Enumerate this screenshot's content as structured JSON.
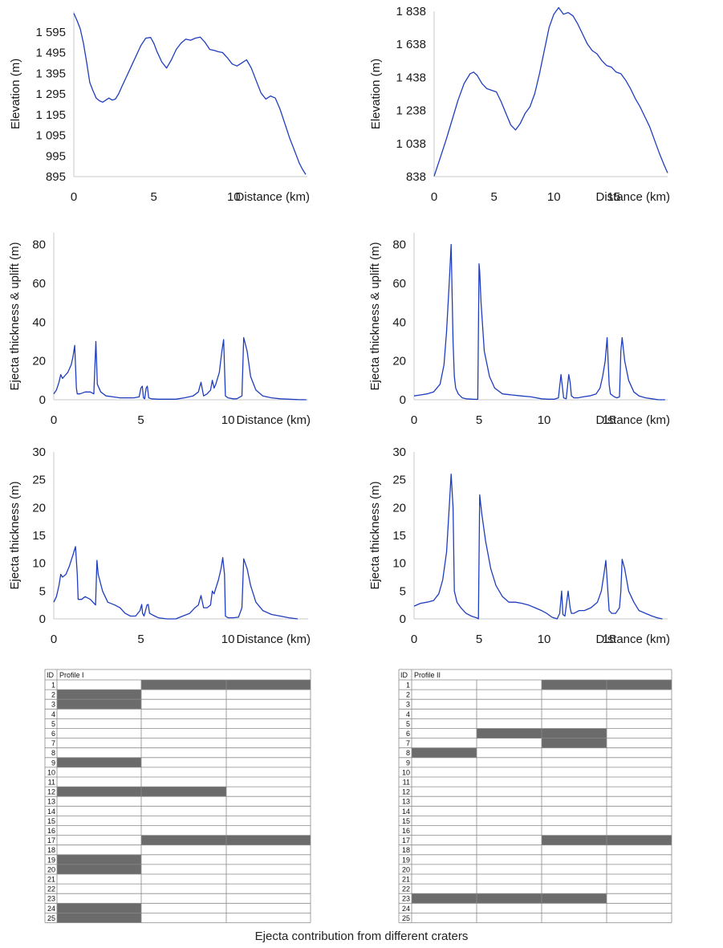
{
  "caption": "Ejecta contribution from different craters",
  "colors": {
    "line": "#1f3dbf",
    "axis": "#c9c9c9",
    "cell_fill": "#6b6b6b",
    "grid": "#8a8a8a"
  },
  "chart_data": [
    {
      "type": "line",
      "xlabel": "Distance (km)",
      "ylabel": "Elevation (m)",
      "ylim": [
        895,
        1695
      ],
      "yticks": [
        895,
        995,
        1095,
        1195,
        1295,
        1395,
        1495,
        1595
      ],
      "ytick_labels": [
        "895",
        "995",
        "1 095",
        "1 195",
        "1 295",
        "1 395",
        "1 495",
        "1 595"
      ],
      "xlim": [
        0,
        14.6
      ],
      "xticks": [
        0,
        5,
        10
      ],
      "xtick_labels": [
        "0",
        "5",
        "10"
      ],
      "series": [
        {
          "x": [
            0,
            0.2,
            0.4,
            0.6,
            0.8,
            1.0,
            1.2,
            1.4,
            1.6,
            1.8,
            2.0,
            2.2,
            2.4,
            2.6,
            2.8,
            3.0,
            3.3,
            3.6,
            3.9,
            4.2,
            4.5,
            4.8,
            5.0,
            5.2,
            5.5,
            5.8,
            6.1,
            6.4,
            6.7,
            7.0,
            7.3,
            7.6,
            7.9,
            8.2,
            8.5,
            8.8,
            9.0,
            9.3,
            9.6,
            9.9,
            10.2,
            10.5,
            10.8,
            11.1,
            11.4,
            11.7,
            12.0,
            12.3,
            12.6,
            12.9,
            13.2,
            13.5,
            13.8,
            14.1,
            14.3,
            14.5
          ],
          "values": [
            1685,
            1650,
            1610,
            1540,
            1450,
            1350,
            1310,
            1275,
            1262,
            1255,
            1265,
            1275,
            1265,
            1270,
            1295,
            1330,
            1380,
            1430,
            1480,
            1530,
            1565,
            1568,
            1540,
            1500,
            1450,
            1420,
            1460,
            1510,
            1540,
            1560,
            1555,
            1565,
            1570,
            1545,
            1510,
            1505,
            1500,
            1495,
            1470,
            1440,
            1430,
            1445,
            1460,
            1420,
            1360,
            1300,
            1270,
            1285,
            1275,
            1220,
            1150,
            1080,
            1020,
            960,
            930,
            905
          ]
        }
      ]
    },
    {
      "type": "line",
      "xlabel": "Distance (km)",
      "ylabel": "Elevation (m)",
      "ylim": [
        838,
        1838
      ],
      "yticks": [
        838,
        1038,
        1238,
        1438,
        1638,
        1838
      ],
      "ytick_labels": [
        "838",
        "1 038",
        "1 238",
        "1 438",
        "1 638",
        "1 838"
      ],
      "xlim": [
        0,
        19.5
      ],
      "xticks": [
        0,
        5,
        10,
        15
      ],
      "xtick_labels": [
        "0",
        "5",
        "10",
        "15"
      ],
      "series": [
        {
          "x": [
            0,
            0.5,
            1.0,
            1.5,
            2.0,
            2.5,
            3.0,
            3.3,
            3.6,
            4.0,
            4.4,
            4.8,
            5.2,
            5.6,
            6.0,
            6.4,
            6.8,
            7.2,
            7.6,
            8.0,
            8.4,
            8.8,
            9.2,
            9.6,
            10.0,
            10.4,
            10.8,
            11.2,
            11.6,
            12.0,
            12.4,
            12.8,
            13.2,
            13.6,
            14.0,
            14.4,
            14.8,
            15.2,
            15.6,
            16.0,
            16.4,
            16.8,
            17.2,
            17.6,
            18.0,
            18.4,
            18.8,
            19.2,
            19.5
          ],
          "values": [
            840,
            950,
            1060,
            1180,
            1300,
            1400,
            1460,
            1470,
            1450,
            1400,
            1370,
            1360,
            1350,
            1290,
            1220,
            1150,
            1120,
            1160,
            1220,
            1260,
            1340,
            1460,
            1600,
            1740,
            1820,
            1860,
            1820,
            1830,
            1810,
            1760,
            1700,
            1640,
            1600,
            1580,
            1540,
            1510,
            1500,
            1470,
            1460,
            1420,
            1370,
            1310,
            1260,
            1200,
            1140,
            1060,
            980,
            910,
            860
          ]
        }
      ]
    },
    {
      "type": "line",
      "xlabel": "Distance (km)",
      "ylabel": "Ejecta thickness & uplift (m)",
      "ylim": [
        0,
        86
      ],
      "yticks": [
        0,
        20,
        40,
        60,
        80
      ],
      "ytick_labels": [
        "0",
        "20",
        "40",
        "60",
        "80"
      ],
      "xlim": [
        0,
        14.6
      ],
      "xticks": [
        0,
        5,
        10
      ],
      "xtick_labels": [
        "0",
        "5",
        "10"
      ],
      "series": [
        {
          "x": [
            0,
            0.15,
            0.3,
            0.4,
            0.5,
            0.6,
            0.8,
            1.0,
            1.1,
            1.2,
            1.3,
            1.35,
            1.5,
            1.8,
            2.1,
            2.3,
            2.42,
            2.5,
            2.7,
            3.0,
            3.4,
            3.8,
            4.2,
            4.6,
            4.9,
            5.0,
            5.08,
            5.15,
            5.22,
            5.3,
            5.37,
            5.45,
            5.6,
            6.0,
            6.5,
            7.0,
            7.5,
            8.0,
            8.3,
            8.45,
            8.6,
            8.8,
            9.0,
            9.1,
            9.2,
            9.3,
            9.5,
            9.65,
            9.75,
            9.85,
            10.0,
            10.3,
            10.5,
            10.8,
            10.9,
            11.1,
            11.3,
            11.6,
            12.0,
            12.5,
            13.0,
            13.5,
            14.0,
            14.5
          ],
          "values": [
            3,
            5,
            9,
            13,
            11,
            12,
            14,
            18,
            22,
            28,
            6,
            3,
            3,
            4,
            4,
            3,
            30,
            8,
            4,
            2,
            1.5,
            1,
            1,
            1,
            1.5,
            6,
            7,
            1,
            0.5,
            6,
            7,
            1,
            0.5,
            0.3,
            0.3,
            0.3,
            1,
            2,
            4,
            9,
            2,
            3,
            5,
            10,
            6,
            8,
            14,
            25,
            31,
            2,
            1,
            0.5,
            0.5,
            2,
            32,
            25,
            12,
            5,
            2,
            1,
            0.5,
            0.3,
            0.1,
            0
          ]
        }
      ]
    },
    {
      "type": "line",
      "xlabel": "Distance (km)",
      "ylabel": "Ejecta thickness & uplift (m)",
      "ylim": [
        0,
        86
      ],
      "yticks": [
        0,
        20,
        40,
        60,
        80
      ],
      "ytick_labels": [
        "0",
        "20",
        "40",
        "60",
        "80"
      ],
      "xlim": [
        0,
        19.5
      ],
      "xticks": [
        0,
        5,
        10,
        15
      ],
      "xtick_labels": [
        "0",
        "5",
        "10",
        "15"
      ],
      "series": [
        {
          "x": [
            0,
            0.5,
            1.0,
            1.5,
            2.0,
            2.3,
            2.5,
            2.7,
            2.85,
            3.0,
            3.1,
            3.2,
            3.4,
            3.7,
            4.0,
            4.5,
            4.9,
            5.0,
            5.05,
            5.15,
            5.4,
            5.8,
            6.2,
            6.8,
            7.5,
            8.2,
            9.0,
            9.8,
            10.3,
            10.8,
            11.1,
            11.3,
            11.5,
            11.7,
            11.9,
            12.0,
            12.1,
            12.3,
            12.6,
            13.0,
            13.5,
            14.0,
            14.3,
            14.5,
            14.7,
            14.85,
            15.0,
            15.1,
            15.4,
            15.6,
            15.8,
            15.9,
            16.0,
            16.2,
            16.5,
            16.9,
            17.3,
            17.8,
            18.3,
            18.8,
            19.3
          ],
          "values": [
            2,
            2.5,
            3,
            4,
            8,
            18,
            35,
            60,
            80,
            30,
            12,
            6,
            3,
            1,
            0.5,
            0.3,
            0.2,
            70,
            66,
            50,
            25,
            12,
            6,
            3,
            2.5,
            2,
            1.5,
            0.5,
            0.3,
            0.3,
            1,
            13,
            1,
            0.5,
            13,
            9,
            2,
            1,
            1,
            1.5,
            2,
            3,
            6,
            12,
            20,
            32,
            8,
            3,
            1.5,
            1,
            1.5,
            25,
            32,
            20,
            10,
            4,
            2,
            1,
            0.5,
            0,
            0
          ]
        }
      ]
    },
    {
      "type": "line",
      "xlabel": "Distance (km)",
      "ylabel": "Ejecta thickness (m)",
      "ylim": [
        0,
        30
      ],
      "yticks": [
        0,
        5,
        10,
        15,
        20,
        25,
        30
      ],
      "ytick_labels": [
        "0",
        "5",
        "10",
        "15",
        "20",
        "25",
        "30"
      ],
      "xlim": [
        0,
        14.6
      ],
      "xticks": [
        0,
        5,
        10
      ],
      "xtick_labels": [
        "0",
        "5",
        "10"
      ],
      "series": [
        {
          "x": [
            0,
            0.15,
            0.3,
            0.4,
            0.5,
            0.7,
            0.9,
            1.1,
            1.25,
            1.35,
            1.4,
            1.6,
            1.8,
            2.1,
            2.4,
            2.48,
            2.55,
            2.8,
            3.1,
            3.5,
            3.8,
            4.1,
            4.4,
            4.7,
            4.95,
            5.05,
            5.1,
            5.18,
            5.35,
            5.42,
            5.5,
            5.8,
            6.0,
            6.5,
            7.0,
            7.4,
            7.8,
            8.1,
            8.3,
            8.45,
            8.6,
            8.8,
            9.0,
            9.1,
            9.2,
            9.3,
            9.45,
            9.6,
            9.7,
            9.8,
            9.85,
            10.0,
            10.3,
            10.6,
            10.8,
            10.9,
            11.1,
            11.3,
            11.6,
            12.0,
            12.5,
            13.0,
            13.5,
            14.0
          ],
          "values": [
            3,
            4,
            6,
            8,
            7.5,
            8,
            9.5,
            11.5,
            13,
            8,
            3.5,
            3.5,
            4,
            3.5,
            2.5,
            10.5,
            8,
            5,
            3,
            2.5,
            2,
            1,
            0.5,
            0.5,
            1.5,
            2.6,
            1,
            0.5,
            2.5,
            2.6,
            1,
            0.5,
            0.2,
            0,
            0,
            0.5,
            1,
            2,
            2.5,
            4.2,
            2,
            2,
            2.5,
            5,
            4.5,
            5.5,
            7,
            9,
            11,
            8,
            0.5,
            0.2,
            0.2,
            0.3,
            2,
            10.8,
            9,
            6,
            3,
            1.5,
            0.8,
            0.5,
            0.2,
            0
          ]
        }
      ]
    },
    {
      "type": "line",
      "xlabel": "Distance (km)",
      "ylabel": "Ejecta thickness (m)",
      "ylim": [
        0,
        30
      ],
      "yticks": [
        0,
        5,
        10,
        15,
        20,
        25,
        30
      ],
      "ytick_labels": [
        "0",
        "5",
        "10",
        "15",
        "20",
        "25",
        "30"
      ],
      "xlim": [
        0,
        19.5
      ],
      "xticks": [
        0,
        5,
        10,
        15
      ],
      "xtick_labels": [
        "0",
        "5",
        "10",
        "15"
      ],
      "series": [
        {
          "x": [
            0,
            0.5,
            1.0,
            1.5,
            1.9,
            2.2,
            2.5,
            2.7,
            2.85,
            3.0,
            3.1,
            3.3,
            3.6,
            4.0,
            4.4,
            4.8,
            4.95,
            5.05,
            5.2,
            5.5,
            5.9,
            6.3,
            6.8,
            7.3,
            7.8,
            8.3,
            8.8,
            9.3,
            9.8,
            10.2,
            10.6,
            11.0,
            11.2,
            11.35,
            11.45,
            11.6,
            11.85,
            12.0,
            12.1,
            12.3,
            12.7,
            13.1,
            13.6,
            14.1,
            14.4,
            14.6,
            14.75,
            14.85,
            15.0,
            15.2,
            15.5,
            15.8,
            15.9,
            16.0,
            16.2,
            16.5,
            16.9,
            17.3,
            17.8,
            18.3,
            18.7,
            19.1
          ],
          "values": [
            2.3,
            2.8,
            3,
            3.3,
            4.5,
            7,
            12,
            20,
            26,
            20,
            5,
            3,
            2,
            1,
            0.5,
            0.2,
            0,
            22.3,
            19,
            14,
            9,
            6,
            4,
            3,
            3,
            2.8,
            2.5,
            2,
            1.5,
            1,
            0.3,
            0,
            1,
            5,
            0.8,
            0.5,
            5,
            2,
            1,
            1,
            1.5,
            1.5,
            2,
            3,
            5,
            8,
            10.5,
            7,
            1.5,
            1,
            1,
            2,
            5,
            10.7,
            9,
            5,
            3,
            1.5,
            1,
            0.5,
            0.2,
            0
          ]
        }
      ]
    },
    {
      "type": "table",
      "id_header": "ID",
      "title": "Profile I",
      "rows": [
        "1",
        "2",
        "3",
        "4",
        "5",
        "6",
        "7",
        "8",
        "9",
        "10",
        "11",
        "12",
        "13",
        "14",
        "15",
        "16",
        "17",
        "18",
        "19",
        "20",
        "21",
        "22",
        "23",
        "24",
        "25"
      ],
      "columns": 3,
      "filled": [
        [
          1,
          1
        ],
        [
          1,
          2
        ],
        [
          2,
          0
        ],
        [
          3,
          0
        ],
        [
          9,
          0
        ],
        [
          12,
          0
        ],
        [
          12,
          1
        ],
        [
          17,
          1
        ],
        [
          17,
          2
        ],
        [
          19,
          0
        ],
        [
          20,
          0
        ],
        [
          24,
          0
        ],
        [
          25,
          0
        ]
      ]
    },
    {
      "type": "table",
      "id_header": "ID",
      "title": "Profile II",
      "rows": [
        "1",
        "2",
        "3",
        "4",
        "5",
        "6",
        "7",
        "8",
        "9",
        "10",
        "11",
        "12",
        "13",
        "14",
        "15",
        "16",
        "17",
        "18",
        "19",
        "20",
        "21",
        "22",
        "23",
        "24",
        "25"
      ],
      "columns": 4,
      "filled": [
        [
          1,
          2
        ],
        [
          1,
          3
        ],
        [
          6,
          1
        ],
        [
          6,
          2
        ],
        [
          7,
          2
        ],
        [
          8,
          0
        ],
        [
          17,
          2
        ],
        [
          17,
          3
        ],
        [
          23,
          0
        ],
        [
          23,
          1
        ],
        [
          23,
          2
        ]
      ]
    }
  ]
}
